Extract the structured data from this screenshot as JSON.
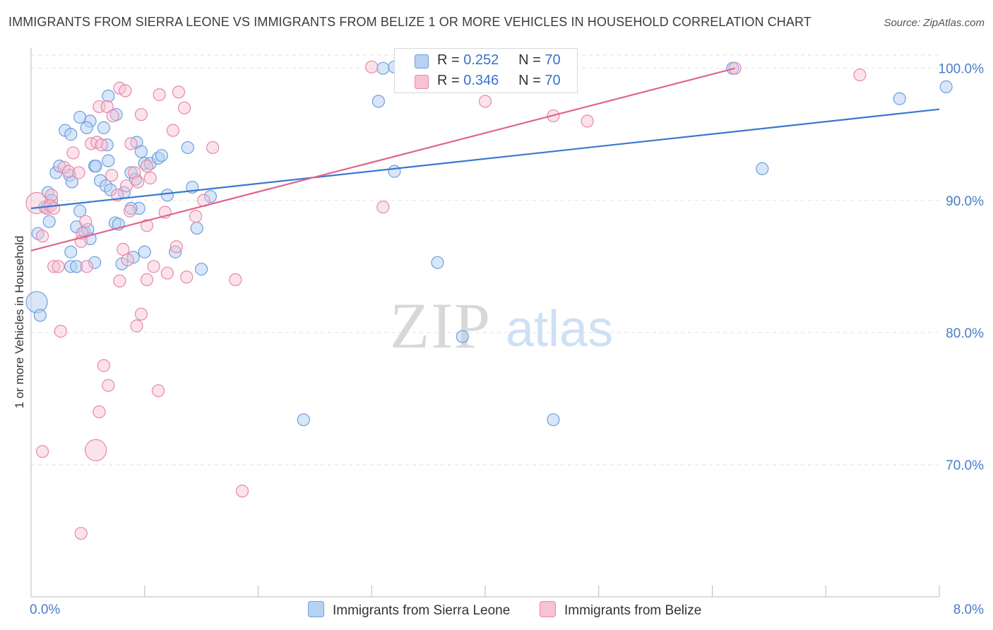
{
  "title": "IMMIGRANTS FROM SIERRA LEONE VS IMMIGRANTS FROM BELIZE 1 OR MORE VEHICLES IN HOUSEHOLD CORRELATION CHART",
  "source": "Source: ZipAtlas.com",
  "watermark": {
    "zip": "ZIP",
    "atlas": "atlas"
  },
  "legend": {
    "r_label": "R =",
    "n_label": "N =",
    "series": [
      {
        "name": "Immigrants from Sierra Leone",
        "r": "0.252",
        "n": "70",
        "color": "#6c9fe0",
        "fill": "#b8d1f3"
      },
      {
        "name": "Immigrants from Belize",
        "r": "0.346",
        "n": "70",
        "color": "#e888a8",
        "fill": "#f7c2d3"
      }
    ]
  },
  "chart_data": {
    "type": "scatter",
    "title": "IMMIGRANTS FROM SIERRA LEONE VS IMMIGRANTS FROM BELIZE 1 OR MORE VEHICLES IN HOUSEHOLD CORRELATION CHART",
    "xlabel": "",
    "ylabel": "1 or more Vehicles in Household",
    "xlim": [
      0.0,
      8.0
    ],
    "ylim": [
      60.0,
      101.0
    ],
    "x_tick_labels": [
      "0.0%",
      "8.0%"
    ],
    "y_ticks": [
      70.0,
      80.0,
      90.0,
      100.0
    ],
    "y_tick_labels": [
      "70.0%",
      "80.0%",
      "90.0%",
      "100.0%"
    ],
    "series": [
      {
        "name": "Immigrants from Sierra Leone",
        "color": "#3a78d0",
        "trend": {
          "x0": 0.0,
          "y0": 89.4,
          "x1": 8.0,
          "y1": 96.9
        },
        "points": [
          [
            0.05,
            82.3
          ],
          [
            0.08,
            81.3
          ],
          [
            0.06,
            87.5
          ],
          [
            0.12,
            89.5
          ],
          [
            0.15,
            90.6
          ],
          [
            0.18,
            90.0
          ],
          [
            0.16,
            88.4
          ],
          [
            0.22,
            92.1
          ],
          [
            0.25,
            92.6
          ],
          [
            0.34,
            91.9
          ],
          [
            0.36,
            91.4
          ],
          [
            0.43,
            89.2
          ],
          [
            0.4,
            88.0
          ],
          [
            0.47,
            87.6
          ],
          [
            0.52,
            87.1
          ],
          [
            0.5,
            87.8
          ],
          [
            0.56,
            85.3
          ],
          [
            0.61,
            91.5
          ],
          [
            0.66,
            91.1
          ],
          [
            0.7,
            90.8
          ],
          [
            0.74,
            88.3
          ],
          [
            0.77,
            88.2
          ],
          [
            0.82,
            90.6
          ],
          [
            0.88,
            92.1
          ],
          [
            0.92,
            91.6
          ],
          [
            0.95,
            89.4
          ],
          [
            0.9,
            85.7
          ],
          [
            0.88,
            89.4
          ],
          [
            0.35,
            85.0
          ],
          [
            0.4,
            85.0
          ],
          [
            0.52,
            96.0
          ],
          [
            0.64,
            95.5
          ],
          [
            0.67,
            94.2
          ],
          [
            0.68,
            93.0
          ],
          [
            0.56,
            92.6
          ],
          [
            0.3,
            95.3
          ],
          [
            0.35,
            95.0
          ],
          [
            0.43,
            96.3
          ],
          [
            0.49,
            95.5
          ],
          [
            0.57,
            92.6
          ],
          [
            0.75,
            96.5
          ],
          [
            0.68,
            97.9
          ],
          [
            0.93,
            94.4
          ],
          [
            0.97,
            93.7
          ],
          [
            1.0,
            92.8
          ],
          [
            1.05,
            92.8
          ],
          [
            1.12,
            93.2
          ],
          [
            1.15,
            93.4
          ],
          [
            1.2,
            90.4
          ],
          [
            1.27,
            86.1
          ],
          [
            1.38,
            94.0
          ],
          [
            1.46,
            87.9
          ],
          [
            1.58,
            90.3
          ],
          [
            1.5,
            84.8
          ],
          [
            1.42,
            91.0
          ],
          [
            0.8,
            85.2
          ],
          [
            0.35,
            86.1
          ],
          [
            1.0,
            86.1
          ],
          [
            3.06,
            97.5
          ],
          [
            3.2,
            92.2
          ],
          [
            3.58,
            85.3
          ],
          [
            3.8,
            79.7
          ],
          [
            4.6,
            73.4
          ],
          [
            6.18,
            100.0
          ],
          [
            6.44,
            92.4
          ],
          [
            7.65,
            97.7
          ],
          [
            8.06,
            98.6
          ],
          [
            3.1,
            100.0
          ],
          [
            3.2,
            100.1
          ],
          [
            2.4,
            73.4
          ]
        ]
      },
      {
        "name": "Immigrants from Belize",
        "color": "#e0648e",
        "trend": {
          "x0": 0.0,
          "y0": 86.2,
          "x1": 6.2,
          "y1": 100.0
        },
        "points": [
          [
            0.05,
            89.8
          ],
          [
            0.1,
            87.3
          ],
          [
            0.14,
            89.4
          ],
          [
            0.18,
            90.4
          ],
          [
            0.2,
            85.0
          ],
          [
            0.24,
            85.0
          ],
          [
            0.26,
            80.1
          ],
          [
            0.29,
            92.5
          ],
          [
            0.33,
            92.2
          ],
          [
            0.37,
            93.6
          ],
          [
            0.42,
            92.1
          ],
          [
            0.45,
            87.5
          ],
          [
            0.48,
            88.4
          ],
          [
            0.44,
            86.9
          ],
          [
            0.49,
            85.0
          ],
          [
            0.53,
            94.3
          ],
          [
            0.58,
            94.4
          ],
          [
            0.62,
            94.2
          ],
          [
            0.6,
            97.1
          ],
          [
            0.67,
            97.1
          ],
          [
            0.72,
            96.4
          ],
          [
            0.78,
            98.5
          ],
          [
            0.83,
            98.3
          ],
          [
            0.88,
            94.3
          ],
          [
            0.91,
            92.1
          ],
          [
            0.94,
            91.4
          ],
          [
            0.97,
            96.5
          ],
          [
            1.02,
            92.6
          ],
          [
            1.05,
            91.7
          ],
          [
            1.13,
            98.0
          ],
          [
            1.2,
            84.5
          ],
          [
            1.25,
            95.3
          ],
          [
            1.3,
            98.2
          ],
          [
            1.35,
            97.0
          ],
          [
            1.18,
            89.1
          ],
          [
            0.78,
            83.9
          ],
          [
            0.81,
            86.3
          ],
          [
            0.85,
            85.5
          ],
          [
            0.87,
            89.2
          ],
          [
            0.93,
            80.5
          ],
          [
            0.97,
            81.4
          ],
          [
            1.02,
            88.1
          ],
          [
            0.71,
            91.9
          ],
          [
            0.76,
            90.4
          ],
          [
            0.84,
            91.1
          ],
          [
            1.02,
            84.0
          ],
          [
            1.08,
            85.0
          ],
          [
            1.12,
            75.6
          ],
          [
            1.28,
            86.5
          ],
          [
            1.37,
            84.2
          ],
          [
            1.45,
            88.8
          ],
          [
            1.52,
            90.0
          ],
          [
            1.6,
            94.0
          ],
          [
            1.8,
            84.0
          ],
          [
            1.86,
            68.0
          ],
          [
            0.57,
            71.1
          ],
          [
            0.6,
            74.0
          ],
          [
            0.64,
            77.5
          ],
          [
            0.68,
            76.0
          ],
          [
            0.44,
            64.8
          ],
          [
            0.1,
            71.0
          ],
          [
            0.17,
            89.6
          ],
          [
            0.2,
            89.4
          ],
          [
            3.0,
            100.1
          ],
          [
            4.0,
            97.5
          ],
          [
            4.6,
            96.4
          ],
          [
            4.9,
            96.0
          ],
          [
            6.2,
            100.0
          ],
          [
            7.3,
            99.5
          ],
          [
            3.1,
            89.5
          ]
        ]
      }
    ]
  }
}
